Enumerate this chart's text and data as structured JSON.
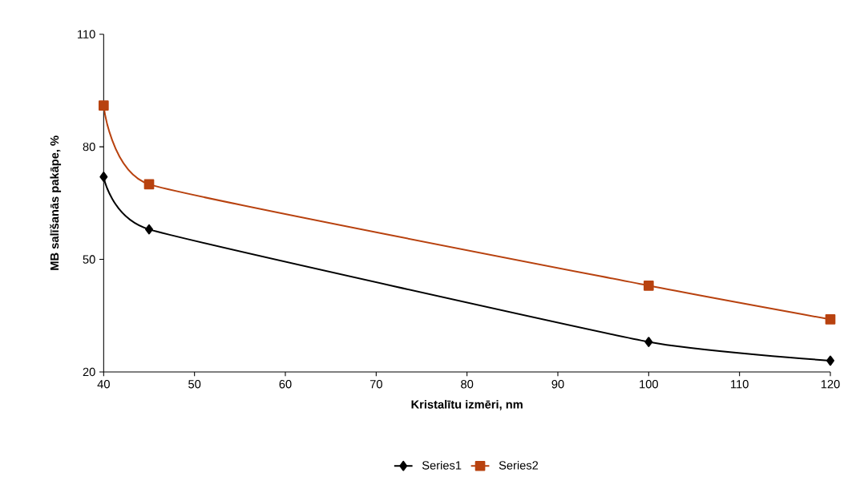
{
  "chart_data": {
    "type": "line",
    "xlabel": "Kristalītu izmēri, nm",
    "ylabel": "MB salīšanās pakāpe, %",
    "x": [
      40,
      45,
      100,
      120
    ],
    "series": [
      {
        "name": "Series1",
        "color": "#000000",
        "marker": "diamond",
        "values": [
          72,
          58,
          28,
          23
        ]
      },
      {
        "name": "Series2",
        "color": "#b8420f",
        "marker": "square",
        "values": [
          91,
          70,
          43,
          34
        ]
      }
    ],
    "xlim": [
      40,
      120
    ],
    "xticks": [
      40,
      50,
      60,
      70,
      80,
      90,
      100,
      110,
      120
    ],
    "ylim": [
      20,
      110
    ],
    "yticks": [
      20,
      50,
      80,
      110
    ],
    "grid": false,
    "legend": "bottom",
    "line_style": "solid"
  }
}
